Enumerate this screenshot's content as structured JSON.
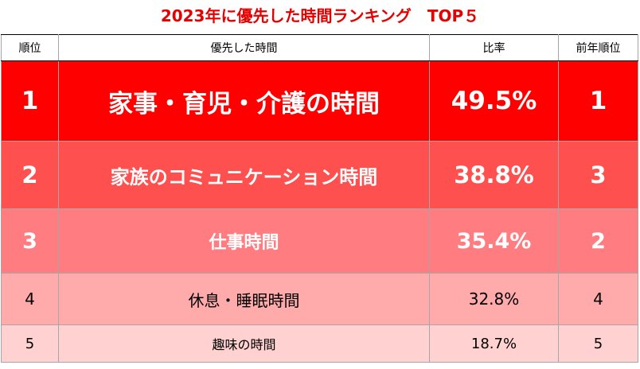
{
  "title": "2023年に優先した時間ランキング　TOP５",
  "table": {
    "headers": {
      "rank": "順位",
      "item": "優先した時間",
      "ratio": "比率",
      "prev_rank": "前年順位"
    },
    "rows": [
      {
        "rank": "1",
        "item": "家事・育児・介護の時間",
        "ratio": "49.5%",
        "prev_rank": "1",
        "color": "#ff0000"
      },
      {
        "rank": "2",
        "item": "家族のコミュニケーション時間",
        "ratio": "38.8%",
        "prev_rank": "3",
        "color": "#ff5050"
      },
      {
        "rank": "3",
        "item": "仕事時間",
        "ratio": "35.4%",
        "prev_rank": "2",
        "color": "#ff7c80"
      },
      {
        "rank": "4",
        "item": "休息・睡眠時間",
        "ratio": "32.8%",
        "prev_rank": "4",
        "color": "#ffabab"
      },
      {
        "rank": "5",
        "item": "趣味の時間",
        "ratio": "18.7%",
        "prev_rank": "5",
        "color": "#ffd1d1"
      }
    ]
  },
  "colors": {
    "title": "#e60000",
    "border": "#a6a6a6"
  }
}
